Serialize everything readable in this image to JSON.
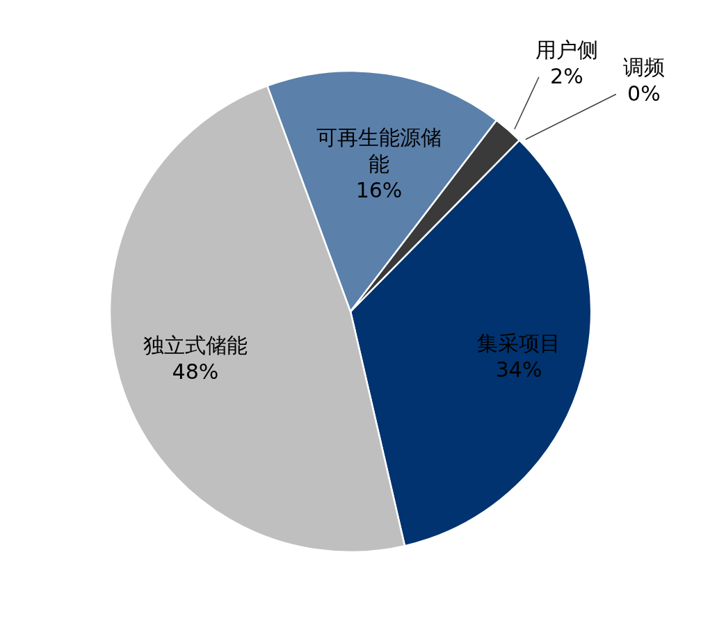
{
  "chart_data": {
    "type": "pie",
    "categories": [
      "集采项目",
      "独立式储能",
      "可再生能源储能",
      "用户侧",
      "调频"
    ],
    "values": [
      34,
      48,
      16,
      2,
      0
    ],
    "colors": [
      "#00336f",
      "#bfbfbf",
      "#5b80aa",
      "#3a3a3a",
      "#c00000"
    ],
    "value_labels": [
      "34%",
      "48%",
      "16%",
      "2%",
      "0%"
    ]
  }
}
